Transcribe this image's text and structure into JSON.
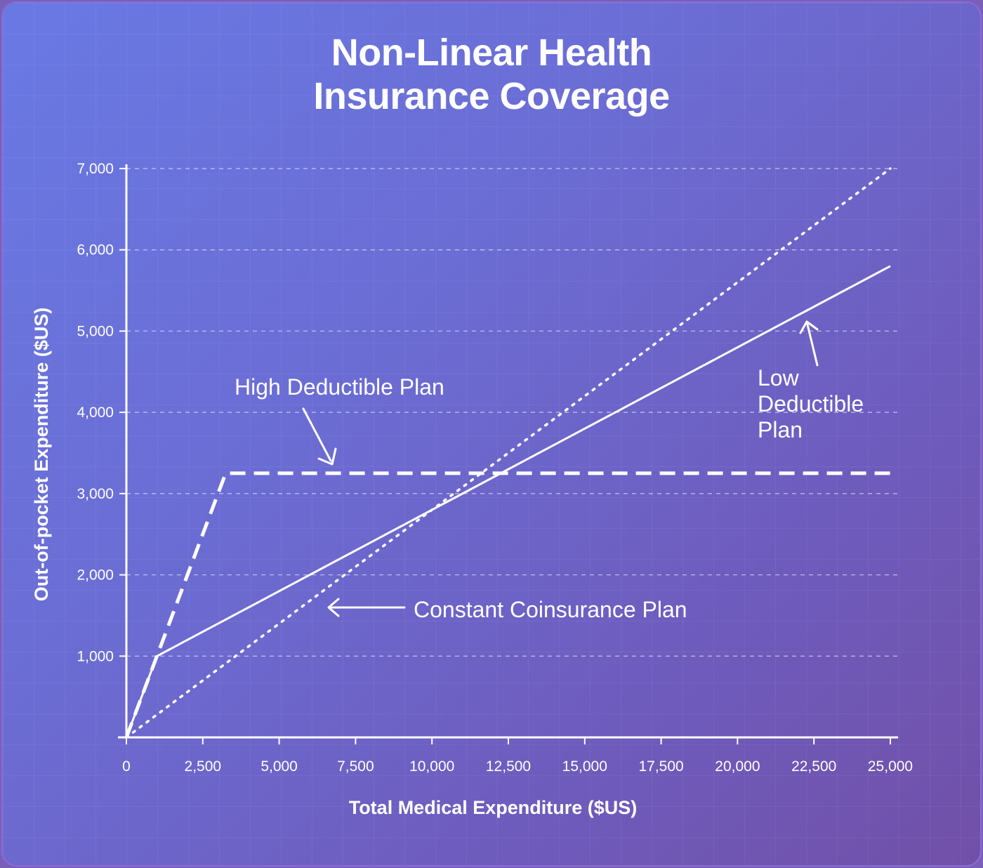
{
  "chart_data": {
    "type": "line",
    "title": "Non-Linear Health Insurance Coverage",
    "title_lines": [
      "Non-Linear Health",
      "Insurance Coverage"
    ],
    "xlabel": "Total Medical Expenditure ($US)",
    "ylabel": "Out-of-pocket Expenditure ($US)",
    "xlim": [
      0,
      25000
    ],
    "ylim": [
      0,
      7000
    ],
    "x_ticks": [
      0,
      2500,
      5000,
      7500,
      10000,
      12500,
      15000,
      17500,
      20000,
      22500,
      25000
    ],
    "x_tick_labels": [
      "0",
      "2,500",
      "5,000",
      "7,500",
      "10,000",
      "12,500",
      "15,000",
      "17,500",
      "20,000",
      "22,500",
      "25,000"
    ],
    "y_ticks": [
      1000,
      2000,
      3000,
      4000,
      5000,
      6000,
      7000
    ],
    "y_tick_labels": [
      "1,000",
      "2,000",
      "3,000",
      "4,000",
      "5,000",
      "6,000",
      "7,000"
    ],
    "grid": "horizontal dashed",
    "series": [
      {
        "name": "High Deductible Plan",
        "style": "dashed",
        "points": [
          [
            0,
            0
          ],
          [
            3250,
            3250
          ],
          [
            25000,
            3250
          ]
        ]
      },
      {
        "name": "Low Deductible Plan",
        "style": "solid",
        "points": [
          [
            0,
            0
          ],
          [
            1000,
            1000
          ],
          [
            25000,
            5800
          ]
        ]
      },
      {
        "name": "Constant Coinsurance Plan",
        "style": "dotted",
        "points": [
          [
            0,
            0
          ],
          [
            25000,
            7000
          ]
        ]
      }
    ],
    "annotations": [
      {
        "series": "High Deductible Plan",
        "lines": [
          "High Deductible Plan"
        ]
      },
      {
        "series": "Low Deductible Plan",
        "lines": [
          "Low",
          "Deductible",
          "Plan"
        ]
      },
      {
        "series": "Constant Coinsurance Plan",
        "lines": [
          "Constant Coinsurance Plan"
        ]
      }
    ],
    "colors": {
      "line": "#ffffff",
      "grid": "#d7d4f2",
      "text": "#ffffff"
    }
  }
}
